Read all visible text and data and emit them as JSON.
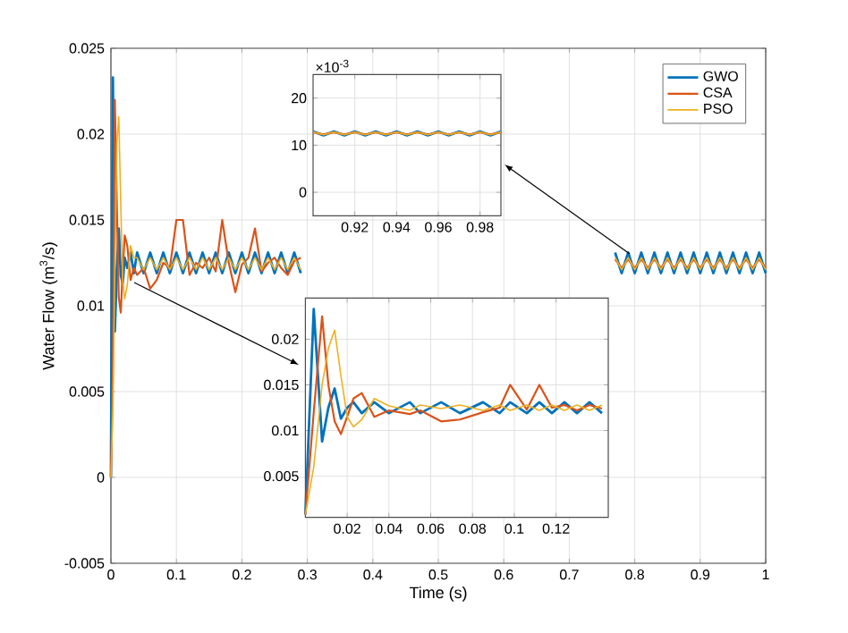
{
  "chart_data": [
    {
      "type": "line",
      "xlabel": "Time (s)",
      "ylabel": "Water Flow (m$^{3}$/s)",
      "xlim": [
        0,
        1
      ],
      "ylim": [
        -0.005,
        0.025
      ],
      "xticks": [
        0,
        0.1,
        0.2,
        0.3,
        0.4,
        0.5,
        0.6,
        0.7,
        0.8,
        0.9,
        1
      ],
      "yticks": [
        -0.005,
        0,
        0.005,
        0.01,
        0.015,
        0.02,
        0.025
      ],
      "grid": true,
      "legend": "top right",
      "x": [
        0,
        0.003,
        0.006,
        0.009,
        0.012,
        0.015,
        0.018,
        0.021,
        0.025,
        0.03,
        0.035,
        0.04,
        0.05,
        0.06,
        0.07,
        0.08,
        0.09,
        0.1,
        0.11,
        0.12,
        0.13,
        0.14,
        0.15,
        0.16,
        0.17,
        0.18,
        0.19,
        0.2,
        0.21,
        0.22,
        0.23,
        0.24,
        0.25,
        0.26,
        0.27,
        0.28,
        0.29,
        0.5,
        0.77,
        0.78,
        0.79,
        0.8,
        0.81,
        0.82,
        0.83,
        0.84,
        0.85,
        0.86,
        0.87,
        0.88,
        0.89,
        0.9,
        0.91,
        0.92,
        0.93,
        0.94,
        0.95,
        0.96,
        0.97,
        0.98,
        0.99,
        1.0
      ],
      "series": [
        {
          "name": "GWO",
          "color": "#0072bd",
          "values": [
            0,
            0.0233,
            0.0085,
            0.012,
            0.0145,
            0.0118,
            0.0113,
            0.0128,
            0.0122,
            0.0131,
            0.0119,
            0.0131,
            0.0119,
            0.0131,
            0.0119,
            0.0131,
            0.0119,
            0.0131,
            0.0119,
            0.0131,
            0.0119,
            0.0131,
            0.0119,
            0.0131,
            0.0119,
            0.0131,
            0.0119,
            0.0131,
            0.0119,
            0.0131,
            0.0119,
            0.0131,
            0.0119,
            0.0131,
            0.0119,
            0.0131,
            0.0119,
            null,
            0.0131,
            0.0119,
            0.0131,
            0.0119,
            0.0131,
            0.0119,
            0.0131,
            0.0119,
            0.0131,
            0.0119,
            0.0131,
            0.0119,
            0.0131,
            0.0119,
            0.0131,
            0.0119,
            0.0131,
            0.0119,
            0.0131,
            0.0119,
            0.0131,
            0.0119,
            0.0131,
            0.0119
          ]
        },
        {
          "name": "CSA",
          "color": "#d95319",
          "values": [
            0,
            0.006,
            0.022,
            0.016,
            0.0105,
            0.0096,
            0.012,
            0.0141,
            0.0135,
            0.0115,
            0.0122,
            0.0118,
            0.0122,
            0.011,
            0.0115,
            0.0125,
            0.0122,
            0.015,
            0.015,
            0.0118,
            0.0125,
            0.0122,
            0.0128,
            0.012,
            0.015,
            0.0125,
            0.0108,
            0.0124,
            0.0128,
            0.0145,
            0.012,
            0.0125,
            0.0128,
            0.0122,
            0.0118,
            0.0126,
            0.0128,
            null,
            0.0127,
            0.0122,
            0.0127,
            0.0122,
            0.0127,
            0.0122,
            0.0127,
            0.0122,
            0.0127,
            0.0122,
            0.0127,
            0.0122,
            0.0127,
            0.0122,
            0.0127,
            0.0122,
            0.0127,
            0.0122,
            0.0127,
            0.0122,
            0.0127,
            0.0122,
            0.0127,
            0.0122
          ]
        },
        {
          "name": "PSO",
          "color": "#edb120",
          "values": [
            0,
            0.004,
            0.012,
            0.0195,
            0.021,
            0.016,
            0.0115,
            0.0104,
            0.0112,
            0.0135,
            0.0128,
            0.0128,
            0.0121,
            0.0128,
            0.0121,
            0.0128,
            0.0121,
            0.0128,
            0.0121,
            0.0128,
            0.0121,
            0.0128,
            0.0121,
            0.0128,
            0.0121,
            0.0128,
            0.0121,
            0.0128,
            0.0121,
            0.0128,
            0.0121,
            0.0128,
            0.0121,
            0.0128,
            0.0121,
            0.0128,
            0.0121,
            null,
            0.0128,
            0.0121,
            0.0128,
            0.0121,
            0.0128,
            0.0121,
            0.0128,
            0.0121,
            0.0128,
            0.0121,
            0.0128,
            0.0121,
            0.0128,
            0.0121,
            0.0128,
            0.0121,
            0.0128,
            0.0121,
            0.0128,
            0.0121,
            0.0128,
            0.0121,
            0.0128,
            0.0121
          ]
        }
      ]
    },
    {
      "type": "line",
      "annotations": [
        "×10$^{-3}$"
      ],
      "xlim": [
        0.9,
        0.99
      ],
      "ylim": [
        -5,
        25
      ],
      "xticks": [
        0.92,
        0.94,
        0.96,
        0.98
      ],
      "yticks": [
        0,
        10,
        20
      ],
      "grid": true,
      "x": [
        0.9,
        0.905,
        0.91,
        0.915,
        0.92,
        0.925,
        0.93,
        0.935,
        0.94,
        0.945,
        0.95,
        0.955,
        0.96,
        0.965,
        0.97,
        0.975,
        0.98,
        0.985,
        0.99
      ],
      "series": [
        {
          "color": "#0072bd",
          "values": [
            12.9,
            12.1,
            12.9,
            12.1,
            12.9,
            12.1,
            12.9,
            12.1,
            12.9,
            12.1,
            12.9,
            12.1,
            12.9,
            12.1,
            12.9,
            12.1,
            12.9,
            12.1,
            12.9
          ]
        },
        {
          "color": "#d95319",
          "values": [
            12.7,
            12.3,
            12.7,
            12.3,
            12.7,
            12.3,
            12.7,
            12.3,
            12.7,
            12.3,
            12.7,
            12.3,
            12.7,
            12.3,
            12.7,
            12.3,
            12.7,
            12.3,
            12.7
          ]
        },
        {
          "color": "#edb120",
          "values": [
            12.8,
            12.2,
            12.8,
            12.2,
            12.8,
            12.2,
            12.8,
            12.2,
            12.8,
            12.2,
            12.8,
            12.2,
            12.8,
            12.2,
            12.8,
            12.2,
            12.8,
            12.2,
            12.8
          ]
        }
      ]
    },
    {
      "type": "line",
      "xlim": [
        0,
        0.145
      ],
      "ylim": [
        0.0005,
        0.0245
      ],
      "xticks": [
        0.02,
        0.04,
        0.06,
        0.08,
        0.1,
        0.12
      ],
      "yticks": [
        0.005,
        0.01,
        0.015,
        0.02
      ],
      "grid": true,
      "x": [
        0,
        0.004,
        0.008,
        0.011,
        0.014,
        0.017,
        0.02,
        0.023,
        0.027,
        0.033,
        0.04,
        0.05,
        0.055,
        0.065,
        0.074,
        0.085,
        0.093,
        0.098,
        0.106,
        0.112,
        0.118,
        0.124,
        0.13,
        0.136,
        0.142
      ],
      "series": [
        {
          "color": "#0072bd",
          "values": [
            0.0008,
            0.0233,
            0.0088,
            0.0125,
            0.0146,
            0.0113,
            0.0125,
            0.0131,
            0.0119,
            0.0131,
            0.0119,
            0.0131,
            0.0119,
            0.0131,
            0.0119,
            0.0131,
            0.0119,
            0.0131,
            0.0119,
            0.0131,
            0.0119,
            0.0131,
            0.0119,
            0.0131,
            0.0119
          ]
        },
        {
          "color": "#d95319",
          "values": [
            0.0008,
            0.012,
            0.0225,
            0.015,
            0.011,
            0.0096,
            0.0115,
            0.0135,
            0.0141,
            0.0115,
            0.0122,
            0.0118,
            0.0122,
            0.011,
            0.0112,
            0.012,
            0.0125,
            0.015,
            0.0123,
            0.015,
            0.0125,
            0.0128,
            0.0122,
            0.0128,
            0.0124
          ]
        },
        {
          "color": "#edb120",
          "values": [
            0.0008,
            0.006,
            0.015,
            0.019,
            0.021,
            0.016,
            0.0115,
            0.0104,
            0.0112,
            0.0135,
            0.0127,
            0.0122,
            0.0128,
            0.0124,
            0.0128,
            0.0122,
            0.0128,
            0.0122,
            0.0128,
            0.0122,
            0.0128,
            0.0122,
            0.0128,
            0.0122,
            0.0128
          ]
        }
      ]
    }
  ]
}
